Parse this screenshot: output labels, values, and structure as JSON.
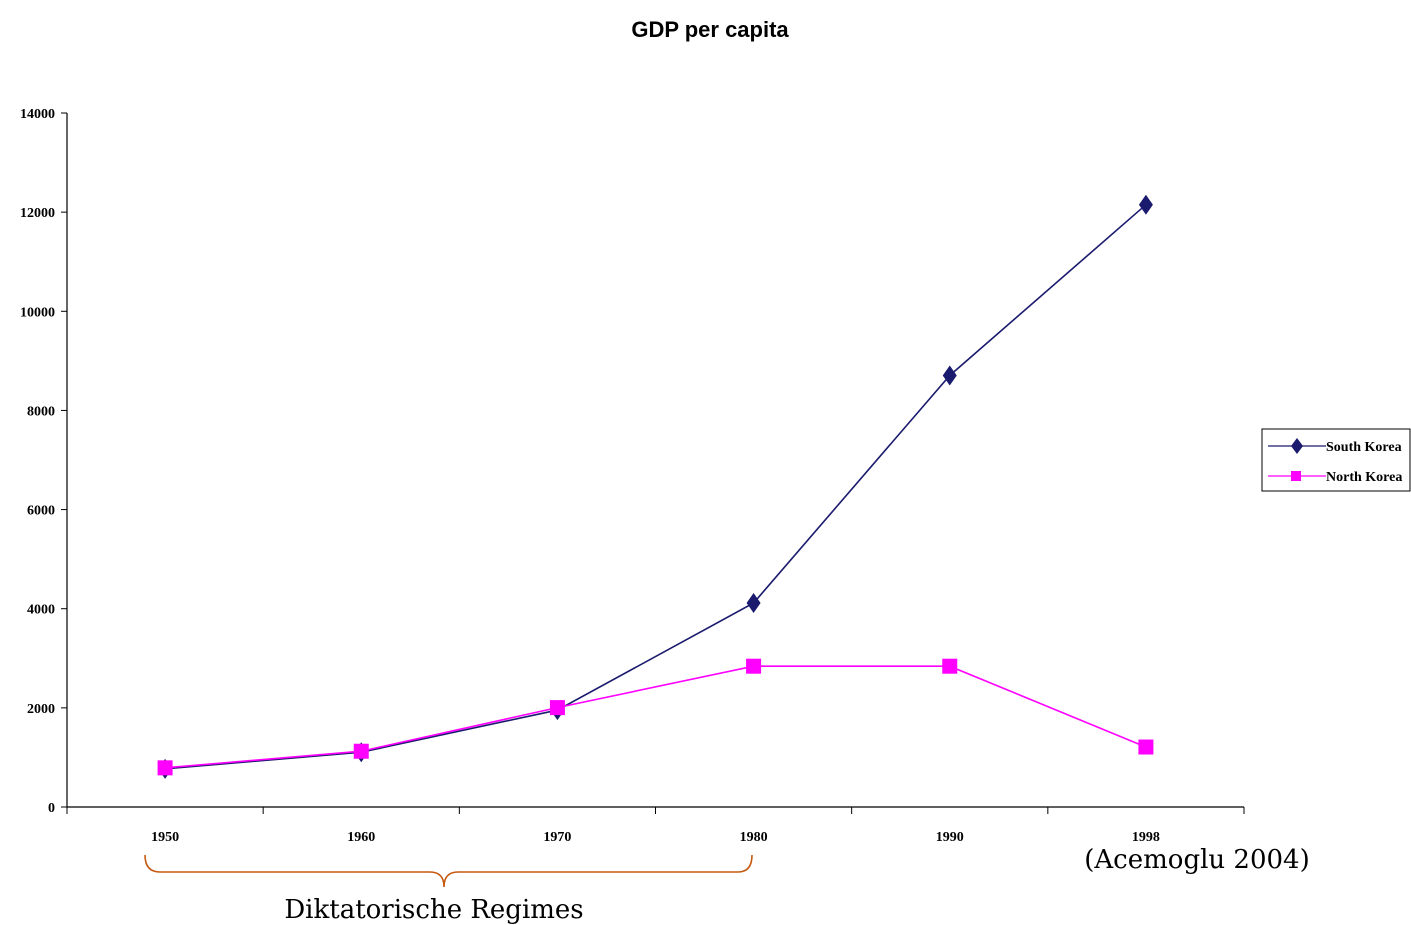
{
  "chart_data": {
    "type": "line",
    "title": "GDP per capita",
    "categories": [
      "1950",
      "1960",
      "1970",
      "1980",
      "1990",
      "1998"
    ],
    "y_ticks": [
      "0",
      "2000",
      "4000",
      "6000",
      "8000",
      "10000",
      "12000",
      "14000"
    ],
    "ylim": [
      0,
      14000
    ],
    "grid": false,
    "legend_position": "right",
    "series": [
      {
        "name": "South Korea",
        "color": "#1a1a6e",
        "marker": "diamond",
        "values": [
          770,
          1105,
          1955,
          4115,
          8705,
          12150
        ]
      },
      {
        "name": "North Korea",
        "color": "#ff00ff",
        "marker": "square",
        "values": [
          790,
          1125,
          2005,
          2840,
          2840,
          1210
        ]
      }
    ],
    "annotations": {
      "bracket_label": "Diktatorische Regimes",
      "bracket_color": "#c55a11",
      "source": "(Acemoglu 2004)"
    }
  }
}
